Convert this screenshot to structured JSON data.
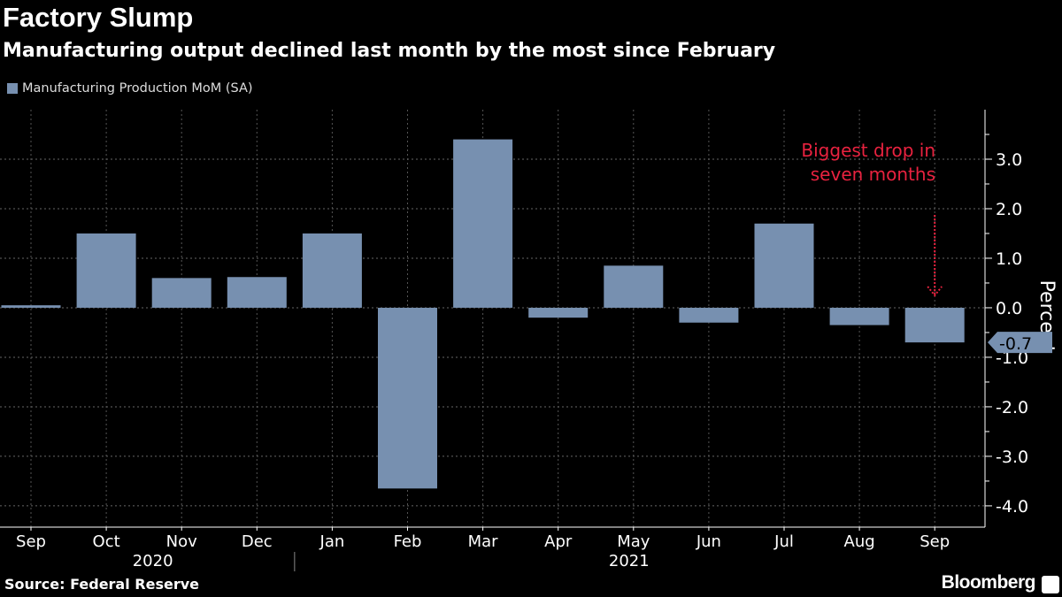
{
  "title": "Factory Slump",
  "subtitle": "Manufacturing output declined last month by the most since February",
  "source": "Source: Federal Reserve",
  "brand": "Bloomberg",
  "chart_data": {
    "type": "bar",
    "categories": [
      "Sep",
      "Oct",
      "Nov",
      "Dec",
      "Jan",
      "Feb",
      "Mar",
      "Apr",
      "May",
      "Jun",
      "Jul",
      "Aug",
      "Sep"
    ],
    "year_labels": [
      {
        "label": "2020",
        "months": [
          "Sep",
          "Oct",
          "Nov",
          "Dec"
        ]
      },
      {
        "label": "2021",
        "months": [
          "Jan",
          "Feb",
          "Mar",
          "Apr",
          "May",
          "Jun",
          "Jul",
          "Aug",
          "Sep"
        ]
      }
    ],
    "series": [
      {
        "name": "Manufacturing Production MoM (SA)",
        "values": [
          0.05,
          1.5,
          0.6,
          0.62,
          1.5,
          -3.65,
          3.4,
          -0.2,
          0.85,
          -0.3,
          1.7,
          -0.35,
          -0.7
        ]
      }
    ],
    "ylabel": "Percent",
    "ylim": [
      -4.43,
      4.0
    ],
    "yticks": [
      "3.0",
      "2.0",
      "1.0",
      "0.0",
      "-1.0",
      "-2.0",
      "-3.0",
      "-4.0"
    ],
    "last_value_label": "-0.7",
    "annotation": [
      "Biggest drop in",
      "seven months"
    ],
    "grid": true,
    "legend_position": "top-left",
    "colors": {
      "bar": "#7790b0",
      "annotation": "#e8223f",
      "background": "#000000"
    }
  }
}
